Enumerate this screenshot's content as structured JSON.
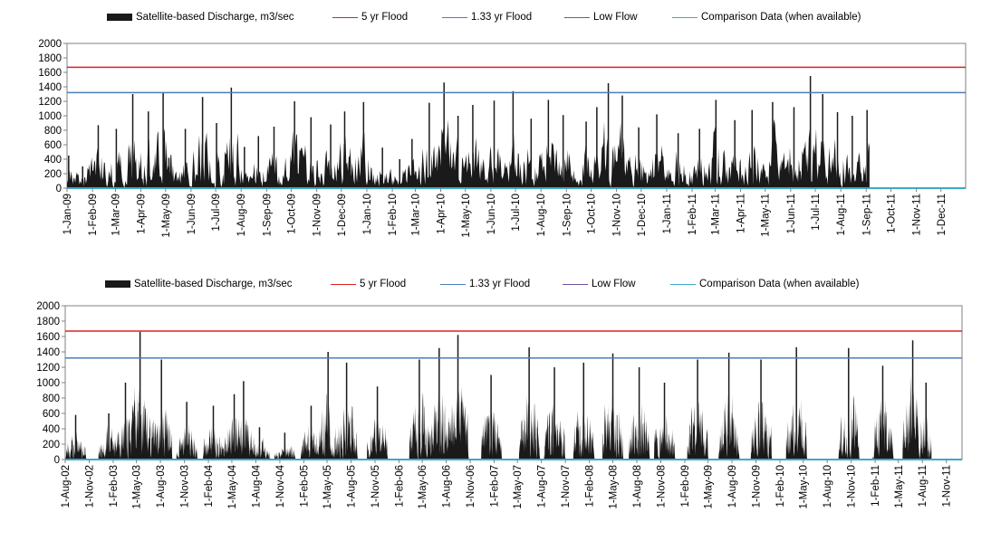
{
  "chart_data": [
    {
      "type": "area",
      "legend": [
        {
          "name": "Satellite-based Discharge, m3/sec",
          "color": "#1a1a1a",
          "kind": "area"
        },
        {
          "name": "5 yr Flood",
          "color": "#e02020",
          "kind": "line"
        },
        {
          "name": "1.33 yr Flood",
          "color": "#4a7ebb",
          "kind": "line"
        },
        {
          "name": "Low Flow",
          "color": "#7a4fa3",
          "kind": "line"
        },
        {
          "name": "Comparison Data (when available)",
          "color": "#3ea8c8",
          "kind": "line"
        }
      ],
      "legend_position": "top",
      "ylim": [
        0,
        2000
      ],
      "yticks": [
        "2000",
        "1800",
        "1600",
        "1400",
        "1200",
        "1000",
        "800",
        "600",
        "400",
        "200",
        "0"
      ],
      "x_range": [
        "2009-01-01",
        "2011-12-31"
      ],
      "xticks": [
        "1-Jan-09",
        "1-Feb-09",
        "1-Mar-09",
        "1-Apr-09",
        "1-May-09",
        "1-Jun-09",
        "1-Jul-09",
        "1-Aug-09",
        "1-Sep-09",
        "1-Oct-09",
        "1-Nov-09",
        "1-Dec-09",
        "1-Jan-10",
        "1-Feb-10",
        "1-Mar-10",
        "1-Apr-10",
        "1-May-10",
        "1-Jun-10",
        "1-Jul-10",
        "1-Aug-10",
        "1-Sep-10",
        "1-Oct-10",
        "1-Nov-10",
        "1-Dec-10",
        "1-Jan-11",
        "1-Feb-11",
        "1-Mar-11",
        "1-Apr-11",
        "1-May-11",
        "1-Jun-11",
        "1-Jul-11",
        "1-Aug-11",
        "1-Sep-11",
        "1-Oct-11",
        "1-Nov-11",
        "1-Dec-11"
      ],
      "flood_5yr": 1670,
      "flood_133yr": 1320,
      "low_flow": 0,
      "data_end": "2011-09-05",
      "discharge_peaks": [
        [
          "2009-01-03",
          450
        ],
        [
          "2009-01-20",
          300
        ],
        [
          "2009-02-08",
          870
        ],
        [
          "2009-03-02",
          820
        ],
        [
          "2009-03-22",
          1300
        ],
        [
          "2009-04-10",
          1060
        ],
        [
          "2009-04-28",
          1320
        ],
        [
          "2009-05-05",
          420
        ],
        [
          "2009-05-25",
          820
        ],
        [
          "2009-06-15",
          1260
        ],
        [
          "2009-07-02",
          900
        ],
        [
          "2009-07-20",
          1390
        ],
        [
          "2009-08-05",
          570
        ],
        [
          "2009-08-22",
          720
        ],
        [
          "2009-09-10",
          850
        ],
        [
          "2009-10-05",
          1200
        ],
        [
          "2009-10-25",
          980
        ],
        [
          "2009-11-18",
          880
        ],
        [
          "2009-12-05",
          1060
        ],
        [
          "2009-12-28",
          1190
        ],
        [
          "2010-01-20",
          560
        ],
        [
          "2010-02-10",
          400
        ],
        [
          "2010-02-25",
          680
        ],
        [
          "2010-03-18",
          1180
        ],
        [
          "2010-04-05",
          1460
        ],
        [
          "2010-04-22",
          1000
        ],
        [
          "2010-05-10",
          1150
        ],
        [
          "2010-06-05",
          1210
        ],
        [
          "2010-06-28",
          1340
        ],
        [
          "2010-07-20",
          960
        ],
        [
          "2010-08-10",
          1220
        ],
        [
          "2010-08-28",
          1010
        ],
        [
          "2010-09-25",
          920
        ],
        [
          "2010-10-08",
          1120
        ],
        [
          "2010-10-22",
          1450
        ],
        [
          "2010-11-08",
          1280
        ],
        [
          "2010-11-28",
          840
        ],
        [
          "2010-12-20",
          1020
        ],
        [
          "2011-01-15",
          760
        ],
        [
          "2011-02-10",
          820
        ],
        [
          "2011-03-02",
          1220
        ],
        [
          "2011-03-25",
          940
        ],
        [
          "2011-04-15",
          1080
        ],
        [
          "2011-05-10",
          1190
        ],
        [
          "2011-06-05",
          1120
        ],
        [
          "2011-06-25",
          1550
        ],
        [
          "2011-07-10",
          1300
        ],
        [
          "2011-07-28",
          1050
        ],
        [
          "2011-08-15",
          1000
        ],
        [
          "2011-09-02",
          1080
        ]
      ]
    },
    {
      "type": "area",
      "legend": [
        {
          "name": "Satellite-based Discharge, m3/sec",
          "color": "#1a1a1a",
          "kind": "area"
        },
        {
          "name": "5 yr Flood",
          "color": "#e02020",
          "kind": "line"
        },
        {
          "name": "1.33 yr Flood",
          "color": "#4a7ebb",
          "kind": "line"
        },
        {
          "name": "Low Flow",
          "color": "#7a4fa3",
          "kind": "line"
        },
        {
          "name": "Comparison Data (when available)",
          "color": "#3ea8c8",
          "kind": "line"
        }
      ],
      "legend_position": "top",
      "ylim": [
        0,
        2000
      ],
      "yticks": [
        "2000",
        "1800",
        "1600",
        "1400",
        "1200",
        "1000",
        "800",
        "600",
        "400",
        "200",
        "0"
      ],
      "x_range": [
        "2002-08-01",
        "2011-12-31"
      ],
      "xticks": [
        "1-Aug-02",
        "1-Nov-02",
        "1-Feb-03",
        "1-May-03",
        "1-Aug-03",
        "1-Nov-03",
        "1-Feb-04",
        "1-May-04",
        "1-Aug-04",
        "1-Nov-04",
        "1-Feb-05",
        "1-May-05",
        "1-Aug-05",
        "1-Nov-05",
        "1-Feb-06",
        "1-May-06",
        "1-Aug-06",
        "1-Nov-06",
        "1-Feb-07",
        "1-May-07",
        "1-Aug-07",
        "1-Nov-07",
        "1-Feb-08",
        "1-May-08",
        "1-Aug-08",
        "1-Nov-08",
        "1-Feb-09",
        "1-May-09",
        "1-Aug-09",
        "1-Nov-09",
        "1-Feb-10",
        "1-May-10",
        "1-Aug-10",
        "1-Nov-10",
        "1-Feb-11",
        "1-May-11",
        "1-Aug-11",
        "1-Nov-11"
      ],
      "flood_5yr": 1670,
      "flood_133yr": 1320,
      "low_flow": 0,
      "data_end": "2011-09-05",
      "discharge_peaks": [
        [
          "2002-09-10",
          580
        ],
        [
          "2003-01-15",
          600
        ],
        [
          "2003-03-20",
          1000
        ],
        [
          "2003-05-15",
          1660
        ],
        [
          "2003-08-05",
          1300
        ],
        [
          "2003-11-10",
          750
        ],
        [
          "2004-02-20",
          700
        ],
        [
          "2004-05-10",
          850
        ],
        [
          "2004-06-15",
          1020
        ],
        [
          "2004-08-15",
          420
        ],
        [
          "2004-11-20",
          350
        ],
        [
          "2005-03-01",
          700
        ],
        [
          "2005-05-05",
          1400
        ],
        [
          "2005-07-15",
          1260
        ],
        [
          "2005-11-10",
          950
        ],
        [
          "2006-04-20",
          1300
        ],
        [
          "2006-07-05",
          1450
        ],
        [
          "2006-09-15",
          1620
        ],
        [
          "2007-01-20",
          1100
        ],
        [
          "2007-06-15",
          1460
        ],
        [
          "2007-09-20",
          1200
        ],
        [
          "2008-01-10",
          1260
        ],
        [
          "2008-05-01",
          1380
        ],
        [
          "2008-08-10",
          1200
        ],
        [
          "2008-11-15",
          1000
        ],
        [
          "2009-03-22",
          1300
        ],
        [
          "2009-07-20",
          1390
        ],
        [
          "2009-11-20",
          1300
        ],
        [
          "2010-04-05",
          1460
        ],
        [
          "2010-10-22",
          1450
        ],
        [
          "2011-03-02",
          1220
        ],
        [
          "2011-06-25",
          1550
        ],
        [
          "2011-08-15",
          1000
        ]
      ]
    }
  ]
}
